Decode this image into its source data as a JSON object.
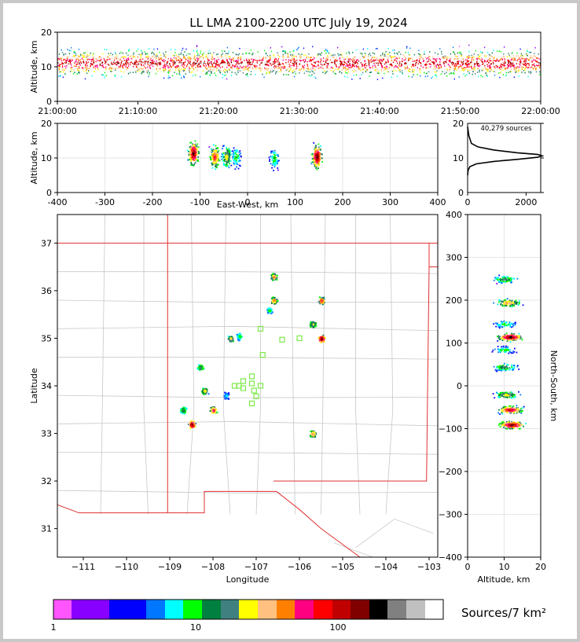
{
  "figure": {
    "title": "LL LMA 2100-2200 UTC July 19, 2024",
    "source_count": "40,279 sources"
  },
  "colors": {
    "state_border": "#e03030",
    "county_border": "#c8c8c8",
    "station": "#7de84a",
    "frame": "#c0c0c0"
  },
  "chart_data": [
    {
      "id": "time-height",
      "type": "heatmap",
      "xlabel": "",
      "ylabel": "Altitude, km",
      "x_ticks": [
        "21:00:00",
        "21:10:00",
        "21:20:00",
        "21:30:00",
        "21:40:00",
        "21:50:00",
        "22:00:00"
      ],
      "xlim": [
        "21:00:00",
        "22:00:00"
      ],
      "ylim": [
        0,
        20
      ],
      "y_ticks": [
        0,
        10,
        20
      ],
      "core_altitude_km": [
        9,
        13
      ]
    },
    {
      "id": "east-west-altitude",
      "type": "heatmap",
      "xlabel": "East-West, km",
      "ylabel": "Altitude, km",
      "xlim": [
        -400,
        400
      ],
      "x_ticks": [
        -400,
        -300,
        -200,
        -100,
        0,
        100,
        200,
        300,
        400
      ],
      "ylim": [
        0,
        20
      ],
      "y_ticks": [
        0,
        10,
        20
      ],
      "cells": [
        {
          "x": -115,
          "alt": 11.5,
          "density": 1.0
        },
        {
          "x": -70,
          "alt": 10.5,
          "density": 0.8
        },
        {
          "x": -45,
          "alt": 10.5,
          "density": 0.6
        },
        {
          "x": -25,
          "alt": 10.5,
          "density": 0.4
        },
        {
          "x": 55,
          "alt": 10,
          "density": 0.4
        },
        {
          "x": 145,
          "alt": 10.5,
          "density": 1.0
        }
      ]
    },
    {
      "id": "altitude-histogram",
      "type": "line",
      "xlim": [
        0,
        2500
      ],
      "x_ticks": [
        0,
        2000
      ],
      "ylim": [
        0,
        20
      ],
      "y_ticks": [
        0,
        10,
        20
      ],
      "x": [
        0,
        20,
        80,
        300,
        900,
        1700,
        2400,
        2550,
        2400,
        1700,
        900,
        350,
        130,
        40,
        0
      ],
      "y": [
        5,
        6.5,
        7.5,
        8.3,
        9.0,
        9.6,
        10.2,
        10.6,
        11.0,
        11.5,
        12.3,
        13.2,
        14.2,
        16.5,
        19
      ]
    },
    {
      "id": "plan-view",
      "type": "scatter",
      "xlabel": "Longitude",
      "ylabel": "Latitude",
      "xlim": [
        -111.6,
        -102.8
      ],
      "ylim": [
        30.4,
        37.6
      ],
      "x_ticks": [
        -111,
        -110,
        -109,
        -108,
        -107,
        -106,
        -105,
        -104,
        -103
      ],
      "y_ticks": [
        31,
        32,
        33,
        34,
        35,
        36,
        37
      ],
      "clusters": [
        {
          "lon": -108.5,
          "lat": 33.2,
          "density": 1.0
        },
        {
          "lon": -108.0,
          "lat": 33.5,
          "density": 0.8
        },
        {
          "lon": -108.2,
          "lat": 33.9,
          "density": 0.6
        },
        {
          "lon": -108.3,
          "lat": 34.4,
          "density": 0.5
        },
        {
          "lon": -108.7,
          "lat": 33.5,
          "density": 0.5
        },
        {
          "lon": -107.6,
          "lat": 35.0,
          "density": 0.6
        },
        {
          "lon": -107.4,
          "lat": 35.05,
          "density": 0.4
        },
        {
          "lon": -106.6,
          "lat": 36.3,
          "density": 0.7
        },
        {
          "lon": -106.6,
          "lat": 35.8,
          "density": 0.7
        },
        {
          "lon": -106.7,
          "lat": 35.6,
          "density": 0.4
        },
        {
          "lon": -105.5,
          "lat": 35.8,
          "density": 0.8
        },
        {
          "lon": -105.7,
          "lat": 35.3,
          "density": 0.6
        },
        {
          "lon": -105.5,
          "lat": 35.0,
          "density": 1.0
        },
        {
          "lon": -105.7,
          "lat": 33.0,
          "density": 0.7
        },
        {
          "lon": -107.7,
          "lat": 33.8,
          "density": 0.3
        }
      ],
      "stations": [
        {
          "lon": -106.9,
          "lat": 35.2
        },
        {
          "lon": -106.4,
          "lat": 34.97
        },
        {
          "lon": -106.0,
          "lat": 35.0
        },
        {
          "lon": -106.85,
          "lat": 34.65
        },
        {
          "lon": -107.1,
          "lat": 34.2
        },
        {
          "lon": -107.3,
          "lat": 34.1
        },
        {
          "lon": -107.4,
          "lat": 34.0
        },
        {
          "lon": -107.5,
          "lat": 34.0
        },
        {
          "lon": -107.3,
          "lat": 33.95
        },
        {
          "lon": -107.1,
          "lat": 34.05
        },
        {
          "lon": -107.05,
          "lat": 33.9
        },
        {
          "lon": -106.9,
          "lat": 34.0
        },
        {
          "lon": -107.0,
          "lat": 33.78
        },
        {
          "lon": -107.1,
          "lat": 33.63
        }
      ]
    },
    {
      "id": "altitude-north-south",
      "type": "heatmap",
      "xlabel": "Altitude, km",
      "ylabel": "North-South, km",
      "xlim": [
        0,
        20
      ],
      "x_ticks": [
        0,
        10,
        20
      ],
      "ylim": [
        -400,
        400
      ],
      "y_ticks": [
        -400,
        -300,
        -200,
        -100,
        0,
        100,
        200,
        300,
        400
      ],
      "cells": [
        {
          "y": 250,
          "alt": 10,
          "density": 0.5
        },
        {
          "y": 195,
          "alt": 11,
          "density": 0.7
        },
        {
          "y": 145,
          "alt": 10,
          "density": 0.4
        },
        {
          "y": 115,
          "alt": 11.5,
          "density": 1.0
        },
        {
          "y": 85,
          "alt": 10,
          "density": 0.4
        },
        {
          "y": 45,
          "alt": 10,
          "density": 0.5
        },
        {
          "y": -20,
          "alt": 10.5,
          "density": 0.6
        },
        {
          "y": -55,
          "alt": 11.5,
          "density": 0.9
        },
        {
          "y": -90,
          "alt": 12,
          "density": 1.0
        }
      ]
    }
  ],
  "colorbar": {
    "label": "Sources/7 km²",
    "ticks": [
      "1",
      "10",
      "100"
    ],
    "colors": [
      "#ff55ff",
      "#8800ff",
      "#0000ff",
      "#0077ff",
      "#00ffff",
      "#00ff00",
      "#008040",
      "#408080",
      "#ffff00",
      "#ffc080",
      "#ff8000",
      "#ff0080",
      "#ff0000",
      "#c00000",
      "#800000",
      "#000000",
      "#808080",
      "#c0c0c0",
      "#ffffff"
    ]
  }
}
